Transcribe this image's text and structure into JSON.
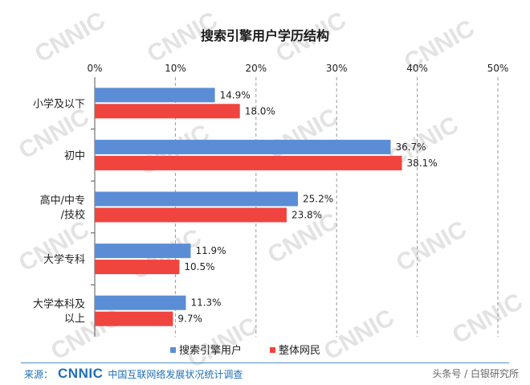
{
  "chart_data": {
    "type": "bar",
    "orientation": "horizontal",
    "title": "搜索引擎用户学历结构",
    "categories": [
      "小学及以下",
      "初中",
      "高中/中专/技校",
      "大学专科",
      "大学本科及以上"
    ],
    "series": [
      {
        "name": "搜索引擎用户",
        "values": [
          14.9,
          36.7,
          25.2,
          11.9,
          11.3
        ],
        "labels": [
          "14.9%",
          "36.7%",
          "25.2%",
          "11.9%",
          "11.3%"
        ],
        "color": "#5b8dd6"
      },
      {
        "name": "整体网民",
        "values": [
          18.0,
          38.1,
          23.8,
          10.5,
          9.7
        ],
        "labels": [
          "18.0%",
          "38.1%",
          "23.8%",
          "10.5%",
          "9.7%"
        ],
        "color": "#f0443f"
      }
    ],
    "xlim": [
      0,
      50
    ],
    "xticks": [
      "0%",
      "10%",
      "20%",
      "30%",
      "40%",
      "50%"
    ],
    "grid": true,
    "legend": "bottom"
  },
  "footer": {
    "source_label": "来源：",
    "logo_text": "CNNIC",
    "report": "中国互联网络发展状况统计调查",
    "credit": "头条号 / 白银研究所"
  },
  "watermark": "CNNIC"
}
